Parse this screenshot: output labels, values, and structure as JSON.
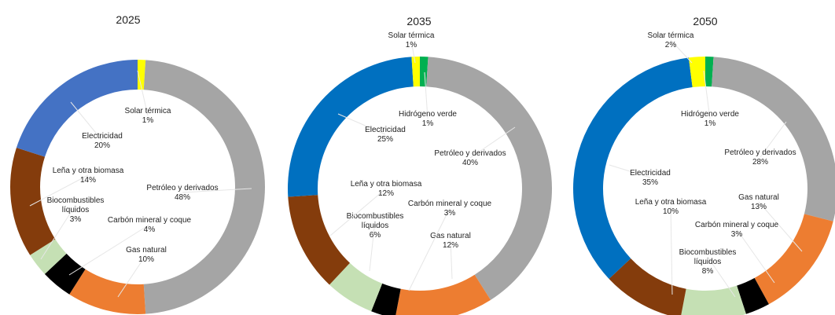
{
  "chart_data": [
    {
      "type": "pie",
      "style": "donut",
      "title": "2025",
      "slices": [
        {
          "label": "Solar térmica",
          "value": 1,
          "value_label": "1%",
          "color": "#ffff00"
        },
        {
          "label": "Petróleo y derivados",
          "value": 48,
          "value_label": "48%",
          "color": "#a5a5a5"
        },
        {
          "label": "Gas natural",
          "value": 10,
          "value_label": "10%",
          "color": "#ed7d31"
        },
        {
          "label": "Carbón mineral y coque",
          "value": 4,
          "value_label": "4%",
          "color": "#000000"
        },
        {
          "label": "Biocombustibles líquidos",
          "value": 3,
          "value_label": "3%",
          "color": "#c5e0b4"
        },
        {
          "label": "Leña y otra biomasa",
          "value": 14,
          "value_label": "14%",
          "color": "#843c0c"
        },
        {
          "label": "Electricidad",
          "value": 20,
          "value_label": "20%",
          "color": "#4472c4"
        }
      ]
    },
    {
      "type": "pie",
      "style": "donut",
      "title": "2035",
      "slices": [
        {
          "label": "Hidrógeno verde",
          "value": 1,
          "value_label": "1%",
          "color": "#00b050"
        },
        {
          "label": "Petróleo y derivados",
          "value": 40,
          "value_label": "40%",
          "color": "#a5a5a5"
        },
        {
          "label": "Gas natural",
          "value": 12,
          "value_label": "12%",
          "color": "#ed7d31"
        },
        {
          "label": "Carbón mineral y coque",
          "value": 3,
          "value_label": "3%",
          "color": "#000000"
        },
        {
          "label": "Biocombustibles líquidos",
          "value": 6,
          "value_label": "6%",
          "color": "#c5e0b4"
        },
        {
          "label": "Leña y otra biomasa",
          "value": 12,
          "value_label": "12%",
          "color": "#843c0c"
        },
        {
          "label": "Electricidad",
          "value": 25,
          "value_label": "25%",
          "color": "#0070c0"
        },
        {
          "label": "Solar térmica",
          "value": 1,
          "value_label": "1%",
          "color": "#ffff00"
        }
      ]
    },
    {
      "type": "pie",
      "style": "donut",
      "title": "2050",
      "slices": [
        {
          "label": "Hidrógeno verde",
          "value": 1,
          "value_label": "1%",
          "color": "#00b050"
        },
        {
          "label": "Petróleo y derivados",
          "value": 28,
          "value_label": "28%",
          "color": "#a5a5a5"
        },
        {
          "label": "Gas natural",
          "value": 13,
          "value_label": "13%",
          "color": "#ed7d31"
        },
        {
          "label": "Carbón mineral y coque",
          "value": 3,
          "value_label": "3%",
          "color": "#000000"
        },
        {
          "label": "Biocombustibles líquidos",
          "value": 8,
          "value_label": "8%",
          "color": "#c5e0b4"
        },
        {
          "label": "Leña y otra biomasa",
          "value": 10,
          "value_label": "10%",
          "color": "#843c0c"
        },
        {
          "label": "Electricidad",
          "value": 35,
          "value_label": "35%",
          "color": "#0070c0"
        },
        {
          "label": "Solar térmica",
          "value": 2,
          "value_label": "2%",
          "color": "#ffff00"
        }
      ]
    }
  ]
}
